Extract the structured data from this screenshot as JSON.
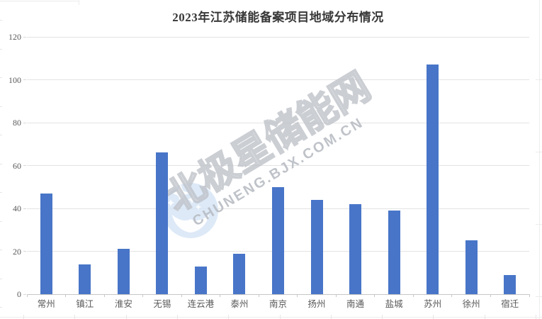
{
  "title": "2023年江苏储能备案项目地域分布情况",
  "watermark": {
    "cn_text": "北极星储能网",
    "url_text": "CHUNENG.BJX.COM.CN",
    "logo": "bjx-star-logo"
  },
  "colors": {
    "bar": "#4875C8",
    "gridline": "#E3E3E3",
    "axis_line": "#C6C6C6",
    "tick_label": "#595959",
    "title_text": "#383838",
    "watermark_gray": "#BABEC3",
    "logo_blue": "#D4E3F5"
  },
  "chart_data": {
    "type": "bar",
    "title": "2023年江苏储能备案项目地域分布情况",
    "categories": [
      "常州",
      "镇江",
      "淮安",
      "无锡",
      "连云港",
      "泰州",
      "南京",
      "扬州",
      "南通",
      "盐城",
      "苏州",
      "徐州",
      "宿迁"
    ],
    "values": [
      47,
      14,
      21,
      66,
      13,
      19,
      50,
      44,
      42,
      39,
      107,
      25,
      9
    ],
    "xlabel": "",
    "ylabel": "",
    "ylim": [
      0,
      120
    ],
    "yticks": [
      0,
      20,
      40,
      60,
      80,
      100,
      120
    ],
    "grid": "horizontal",
    "legend": "none",
    "bar_color": "#4875C8"
  }
}
